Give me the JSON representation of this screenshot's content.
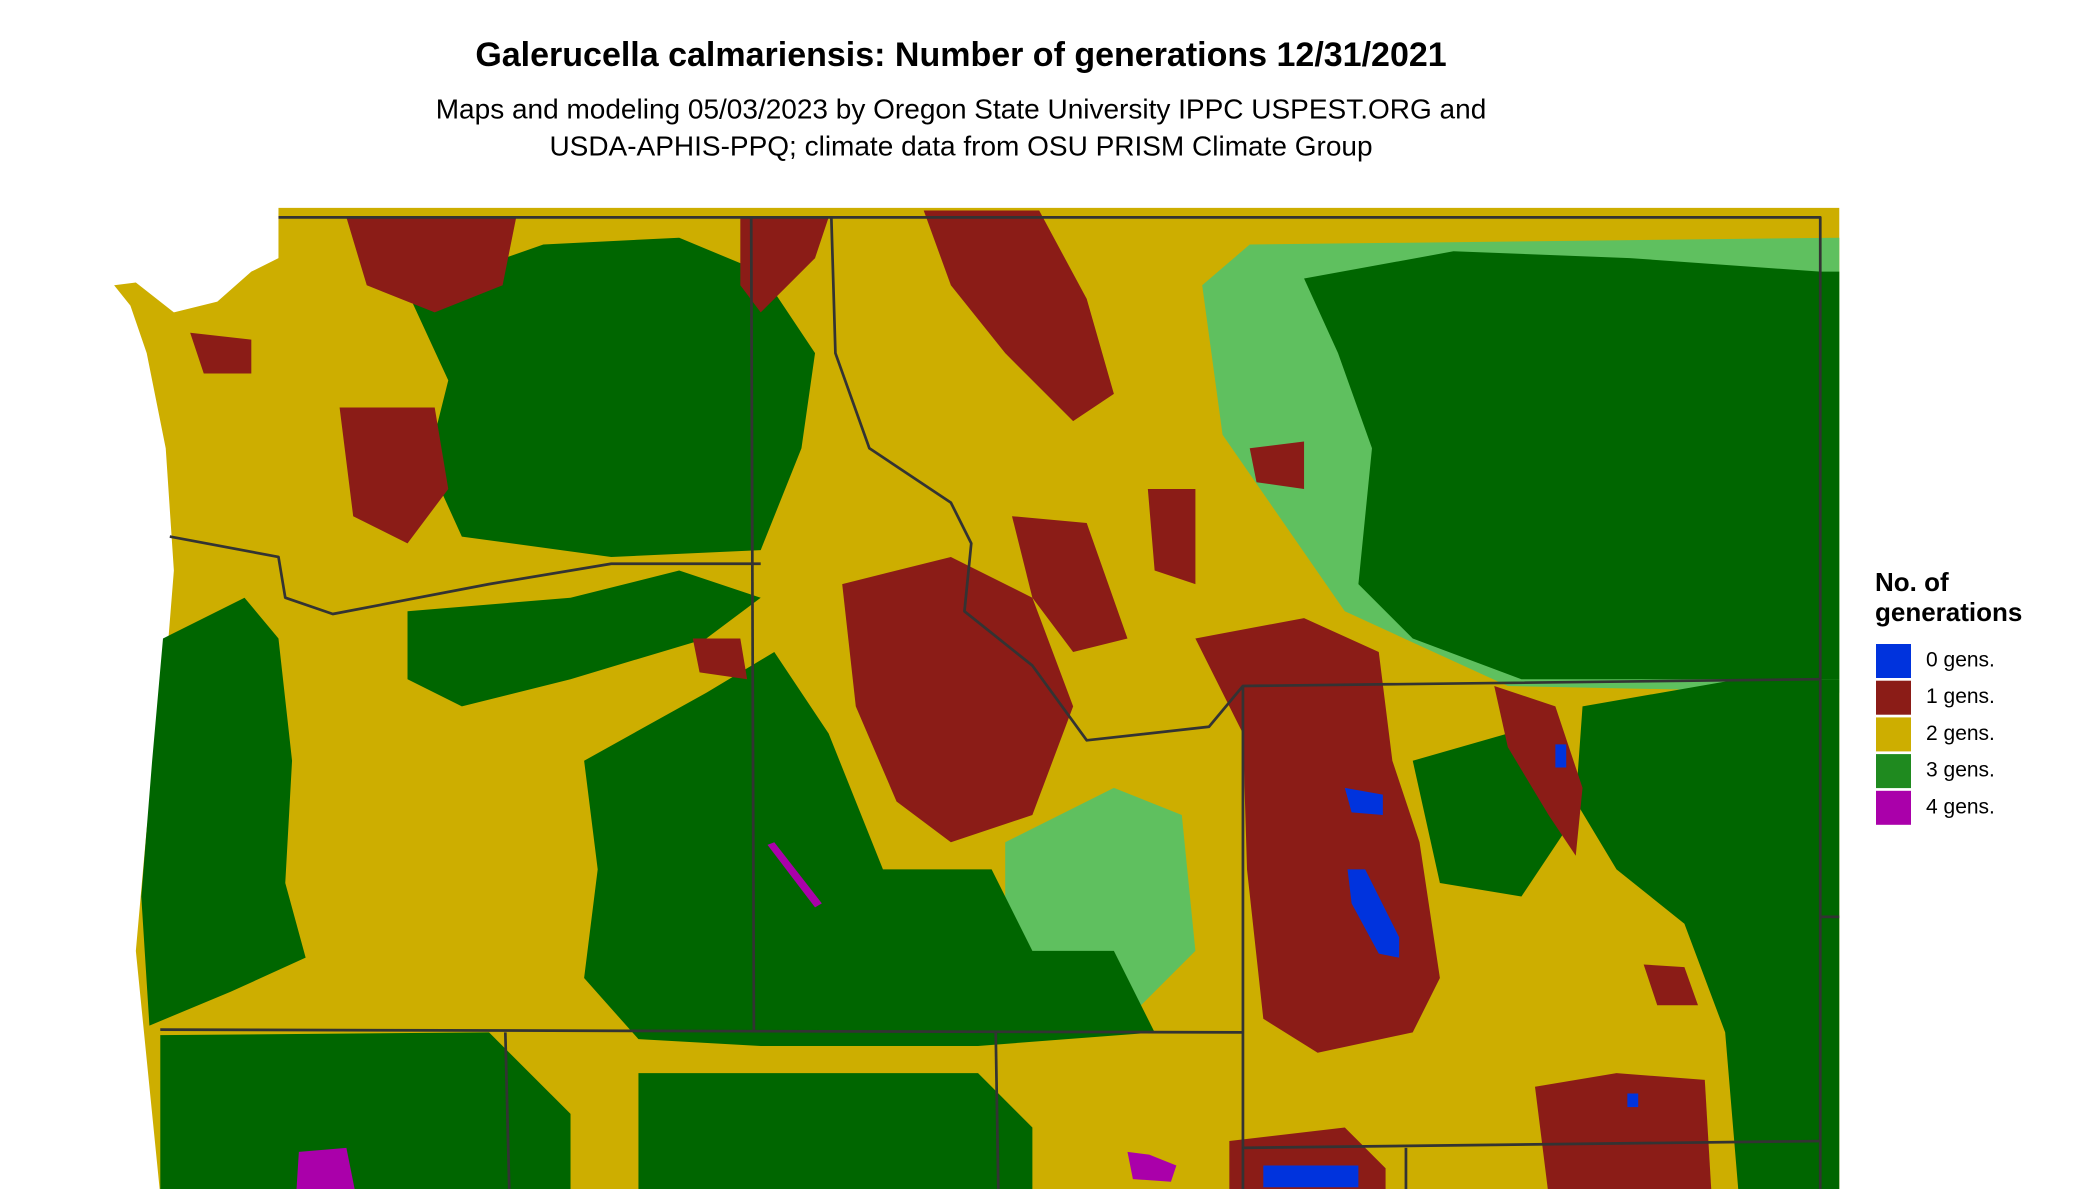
{
  "title": "Galerucella calmariensis: Number of generations 12/31/2021",
  "subtitle": [
    "Maps and modeling 05/03/2023 by Oregon State University IPPC USPEST.ORG and",
    "USDA-APHIS-PPQ; climate data from OSU PRISM Climate Group"
  ],
  "legend": {
    "title": [
      "No. of",
      "generations"
    ],
    "items": [
      {
        "label": "0 gens.",
        "color": "#0033dd"
      },
      {
        "label": "1 gens.",
        "color": "#8b1c17"
      },
      {
        "label": "2 gens.",
        "color": "#cdae00"
      },
      {
        "label": "3 gens.",
        "color": "#1f8a1f"
      },
      {
        "label": "4 gens.",
        "color": "#aa00aa"
      }
    ]
  }
}
